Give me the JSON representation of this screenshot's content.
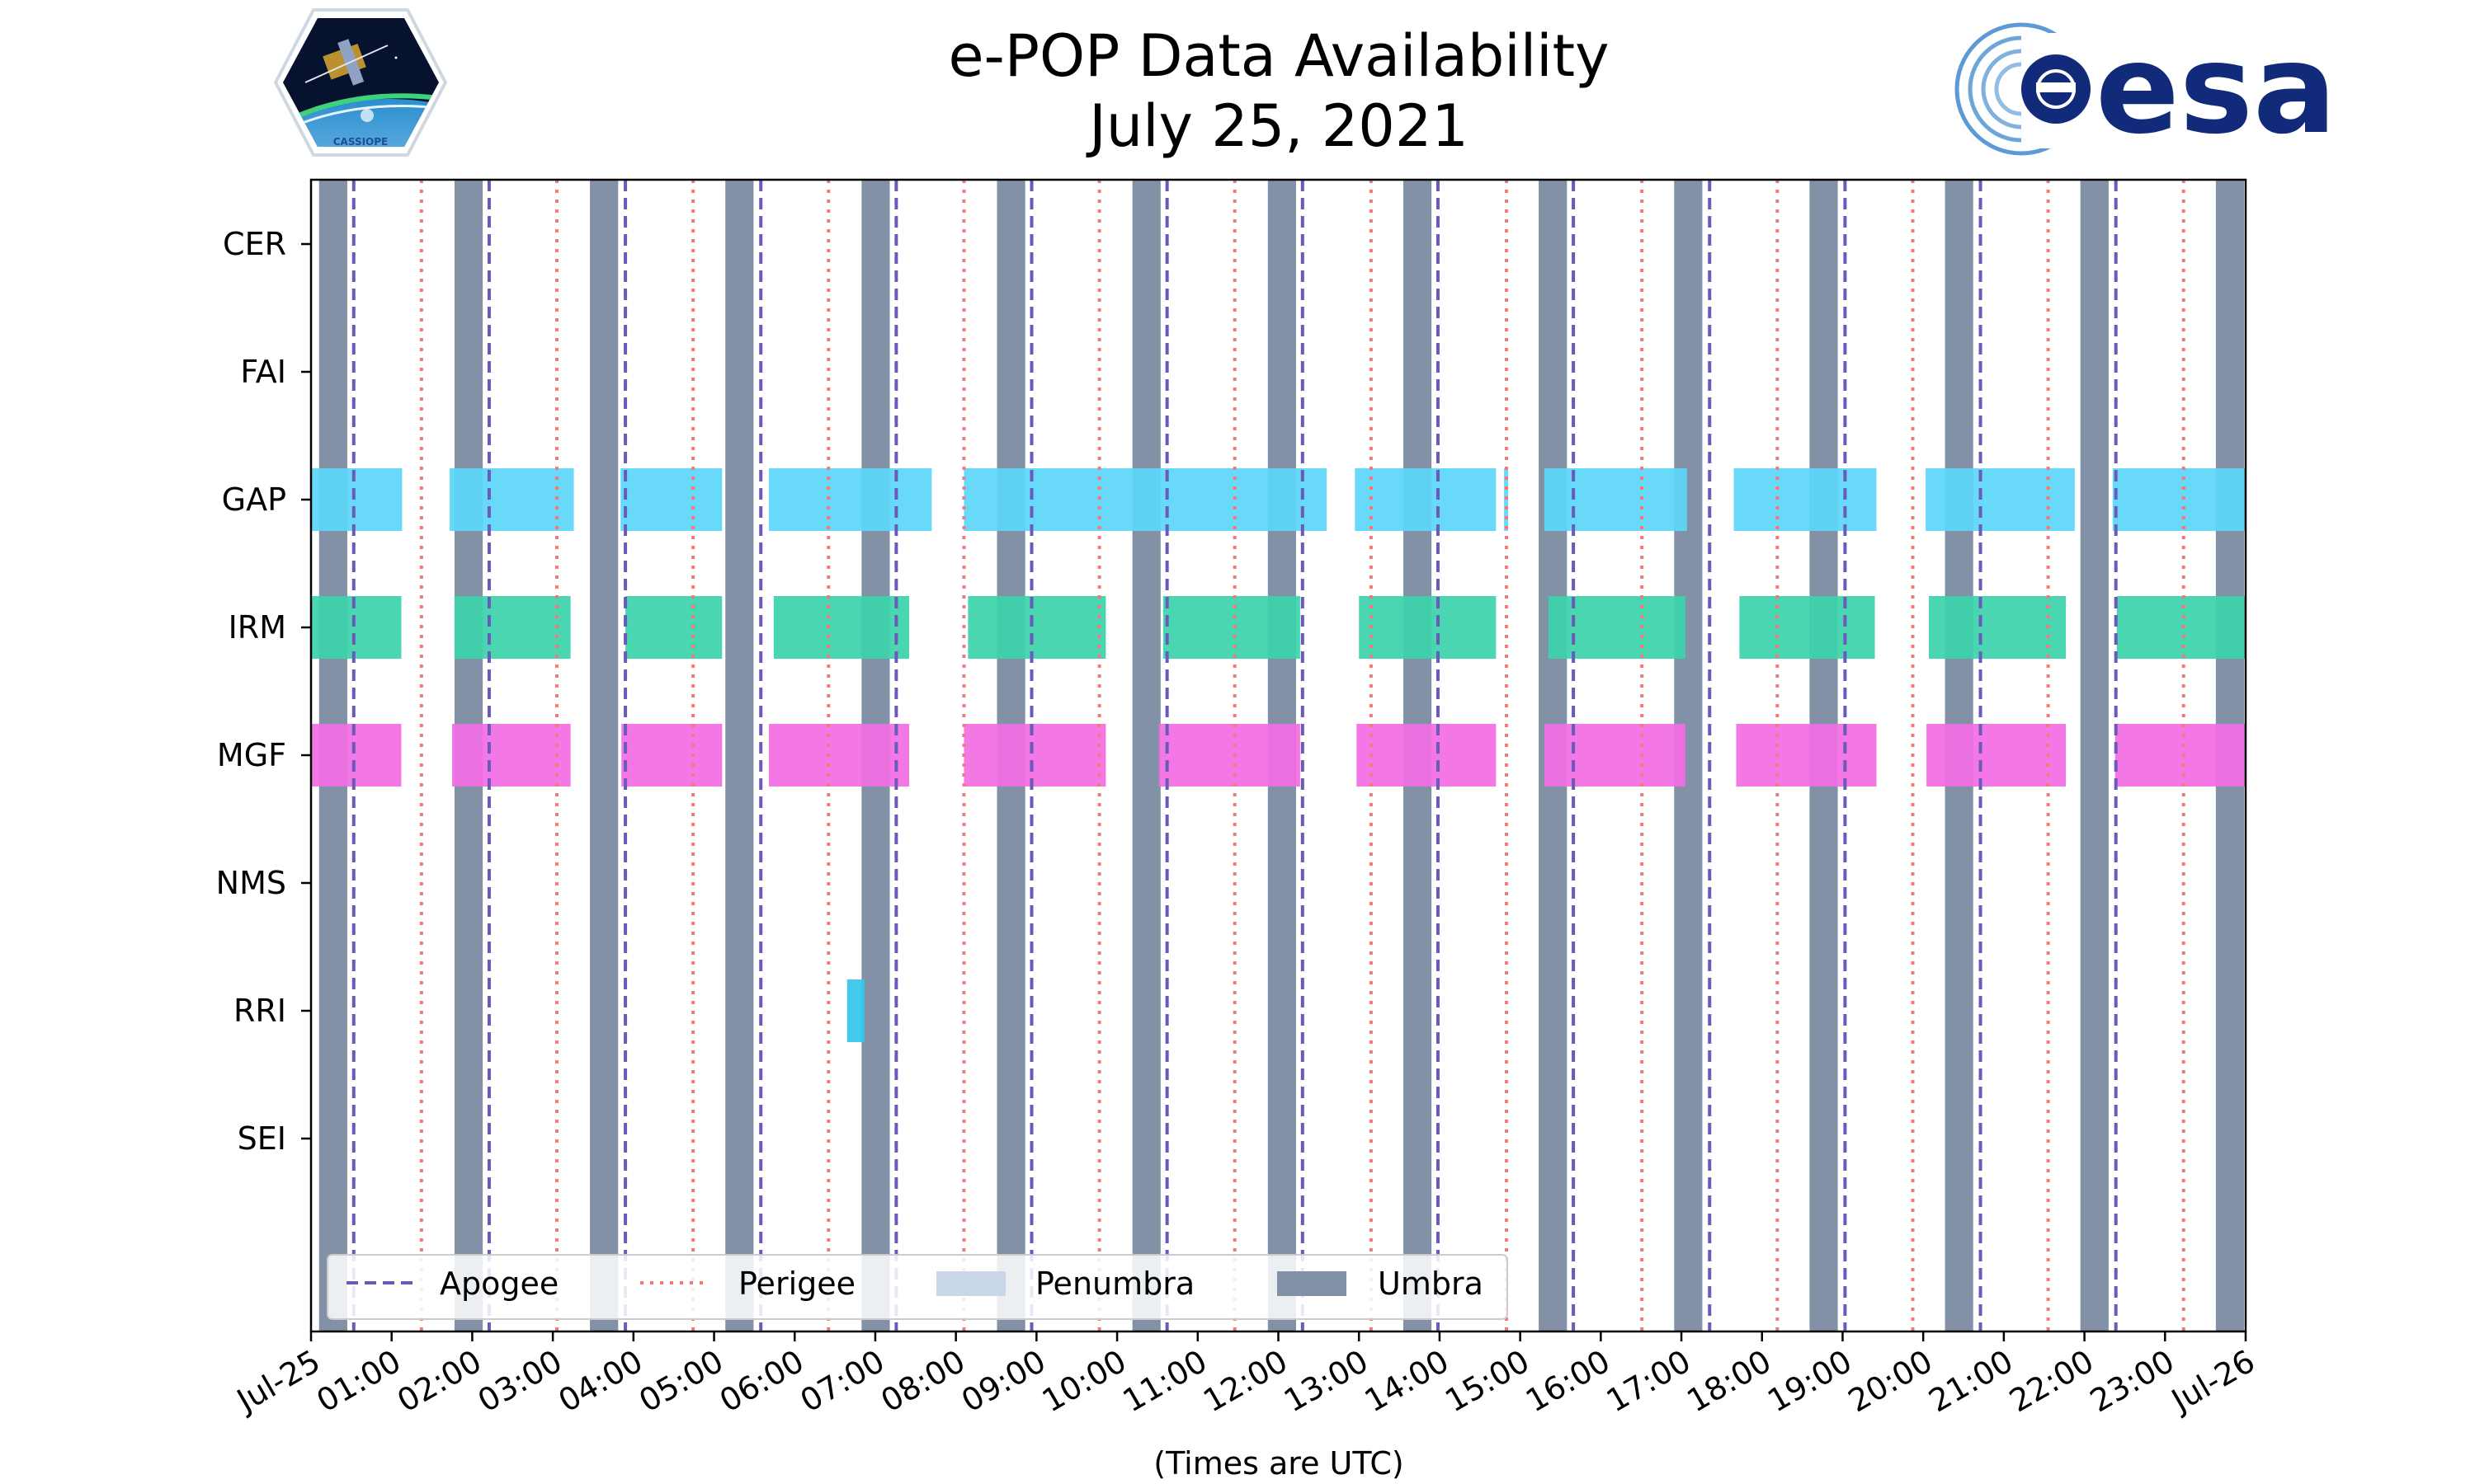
{
  "chart_data": {
    "type": "gantt-timeline",
    "title": [
      "e-POP Data Availability",
      "July 25, 2021"
    ],
    "xlabel": "(Times are UTC)",
    "xlim_hours": [
      0,
      24
    ],
    "xticks": [
      {
        "hour": 0,
        "label": "Jul-25"
      },
      {
        "hour": 1,
        "label": "01:00"
      },
      {
        "hour": 2,
        "label": "02:00"
      },
      {
        "hour": 3,
        "label": "03:00"
      },
      {
        "hour": 4,
        "label": "04:00"
      },
      {
        "hour": 5,
        "label": "05:00"
      },
      {
        "hour": 6,
        "label": "06:00"
      },
      {
        "hour": 7,
        "label": "07:00"
      },
      {
        "hour": 8,
        "label": "08:00"
      },
      {
        "hour": 9,
        "label": "09:00"
      },
      {
        "hour": 10,
        "label": "10:00"
      },
      {
        "hour": 11,
        "label": "11:00"
      },
      {
        "hour": 12,
        "label": "12:00"
      },
      {
        "hour": 13,
        "label": "13:00"
      },
      {
        "hour": 14,
        "label": "14:00"
      },
      {
        "hour": 15,
        "label": "15:00"
      },
      {
        "hour": 16,
        "label": "16:00"
      },
      {
        "hour": 17,
        "label": "17:00"
      },
      {
        "hour": 18,
        "label": "18:00"
      },
      {
        "hour": 19,
        "label": "19:00"
      },
      {
        "hour": 20,
        "label": "20:00"
      },
      {
        "hour": 21,
        "label": "21:00"
      },
      {
        "hour": 22,
        "label": "22:00"
      },
      {
        "hour": 23,
        "label": "23:00"
      },
      {
        "hour": 24,
        "label": "Jul-26"
      }
    ],
    "instruments": [
      "CER",
      "FAI",
      "GAP",
      "IRM",
      "MGF",
      "NMS",
      "RRI",
      "SEI"
    ],
    "colors": {
      "umbra": "#8291a5",
      "penumbra": "#c9d7e8",
      "apogee": "#6a5aba",
      "perigee": "#f07a7a",
      "GAP": "#5cd6f7",
      "IRM": "#3cd3ab",
      "MGF": "#f26ee3",
      "RRI": "#36c6ec"
    },
    "umbra_intervals": [
      [
        0.1,
        0.45
      ],
      [
        1.78,
        2.13
      ],
      [
        3.46,
        3.81
      ],
      [
        5.14,
        5.49
      ],
      [
        6.83,
        7.18
      ],
      [
        8.51,
        8.86
      ],
      [
        10.19,
        10.54
      ],
      [
        11.87,
        12.22
      ],
      [
        13.55,
        13.9
      ],
      [
        15.23,
        15.58
      ],
      [
        16.91,
        17.26
      ],
      [
        18.59,
        18.94
      ],
      [
        20.27,
        20.62
      ],
      [
        21.95,
        22.3
      ],
      [
        23.63,
        23.98
      ]
    ],
    "apogee_hours": [
      0.53,
      2.21,
      3.9,
      5.58,
      7.26,
      8.94,
      10.62,
      12.3,
      13.98,
      15.66,
      17.35,
      19.03,
      20.71,
      22.39
    ],
    "perigee_hours": [
      1.37,
      3.05,
      4.74,
      6.42,
      8.1,
      9.78,
      11.46,
      13.15,
      14.83,
      16.51,
      18.19,
      19.87,
      21.55,
      23.23
    ],
    "availability": {
      "GAP": [
        [
          0,
          1.13
        ],
        [
          1.72,
          3.26
        ],
        [
          3.84,
          5.1
        ],
        [
          5.68,
          7.7
        ],
        [
          8.1,
          12.6
        ],
        [
          12.95,
          14.7
        ],
        [
          14.8,
          14.85
        ],
        [
          15.3,
          17.07
        ],
        [
          17.65,
          19.42
        ],
        [
          20.03,
          21.88
        ],
        [
          22.35,
          24
        ]
      ],
      "IRM": [
        [
          0,
          1.12
        ],
        [
          1.78,
          3.22
        ],
        [
          3.9,
          5.1
        ],
        [
          5.74,
          7.42
        ],
        [
          8.15,
          9.86
        ],
        [
          10.57,
          12.27
        ],
        [
          13.0,
          14.7
        ],
        [
          15.35,
          17.05
        ],
        [
          17.72,
          19.4
        ],
        [
          20.07,
          21.77
        ],
        [
          22.4,
          24
        ]
      ],
      "MGF": [
        [
          0,
          1.12
        ],
        [
          1.75,
          3.22
        ],
        [
          3.85,
          5.1
        ],
        [
          5.68,
          7.42
        ],
        [
          8.1,
          9.86
        ],
        [
          10.52,
          12.27
        ],
        [
          12.97,
          14.7
        ],
        [
          15.3,
          17.05
        ],
        [
          17.68,
          19.42
        ],
        [
          20.04,
          21.77
        ],
        [
          22.38,
          24
        ]
      ],
      "RRI": [
        [
          6.65,
          6.87
        ]
      ]
    },
    "legend": [
      {
        "key": "apogee",
        "label": "Apogee"
      },
      {
        "key": "perigee",
        "label": "Perigee"
      },
      {
        "key": "penumbra",
        "label": "Penumbra"
      },
      {
        "key": "umbra",
        "label": "Umbra"
      }
    ],
    "legend_position": "lower-left"
  },
  "logos": {
    "cassiope_text": "CASSIOPE",
    "esa_text": "esa",
    "esa_color": "#112a7a"
  }
}
